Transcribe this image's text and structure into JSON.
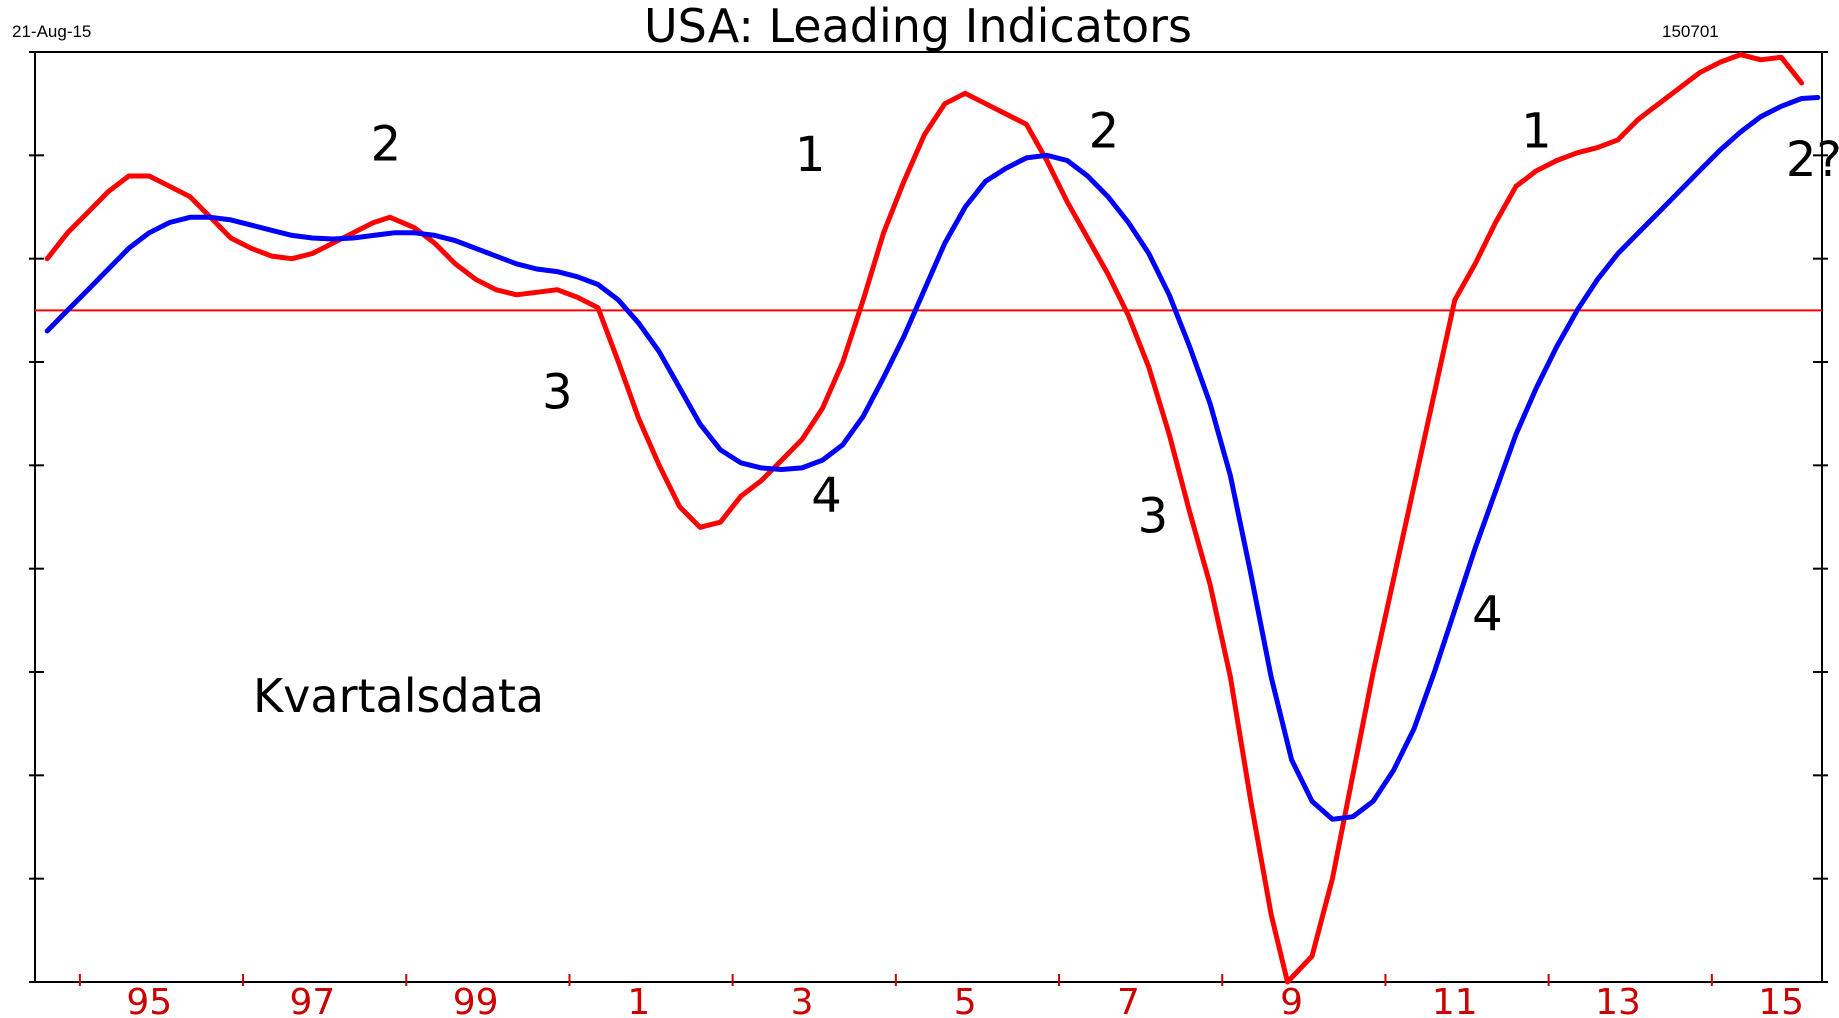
{
  "header": {
    "title": "USA: Leading Indicators",
    "date": "21-Aug-15",
    "code": "150701"
  },
  "note": "Kvartalsdata",
  "chart_data": {
    "type": "line",
    "title": "USA: Leading Indicators",
    "xlabel": "",
    "ylabel": "",
    "xlim": [
      1993.6,
      2015.5
    ],
    "ylim": [
      -9.0,
      9.0
    ],
    "grid": false,
    "legend": "none",
    "x_tick_labels": [
      {
        "x": 1995,
        "label": "95"
      },
      {
        "x": 1997,
        "label": "97"
      },
      {
        "x": 1999,
        "label": "99"
      },
      {
        "x": 2001,
        "label": "1"
      },
      {
        "x": 2003,
        "label": "3"
      },
      {
        "x": 2005,
        "label": "5"
      },
      {
        "x": 2007,
        "label": "7"
      },
      {
        "x": 2009,
        "label": "9"
      },
      {
        "x": 2011,
        "label": "11"
      },
      {
        "x": 2013,
        "label": "13"
      },
      {
        "x": 2015,
        "label": "15"
      }
    ],
    "y_ticks": [
      -9,
      -7,
      -5,
      -3,
      -1,
      1,
      3,
      5,
      7,
      9
    ],
    "reference_line": {
      "y": 4.0,
      "color": "#ff0000"
    },
    "series": [
      {
        "color": "#ff0000",
        "points": [
          [
            1993.75,
            5.0
          ],
          [
            1994.0,
            5.5
          ],
          [
            1994.25,
            5.9
          ],
          [
            1994.5,
            6.3
          ],
          [
            1994.75,
            6.6
          ],
          [
            1995.0,
            6.6
          ],
          [
            1995.25,
            6.4
          ],
          [
            1995.5,
            6.2
          ],
          [
            1995.75,
            5.8
          ],
          [
            1996.0,
            5.4
          ],
          [
            1996.25,
            5.2
          ],
          [
            1996.5,
            5.05
          ],
          [
            1996.75,
            5.0
          ],
          [
            1997.0,
            5.1
          ],
          [
            1997.25,
            5.3
          ],
          [
            1997.5,
            5.5
          ],
          [
            1997.75,
            5.7
          ],
          [
            1997.95,
            5.8
          ],
          [
            1998.25,
            5.6
          ],
          [
            1998.5,
            5.3
          ],
          [
            1998.75,
            4.9
          ],
          [
            1999.0,
            4.6
          ],
          [
            1999.25,
            4.4
          ],
          [
            1999.5,
            4.3
          ],
          [
            1999.75,
            4.35
          ],
          [
            2000.0,
            4.4
          ],
          [
            2000.25,
            4.25
          ],
          [
            2000.5,
            4.05
          ],
          [
            2000.75,
            3.0
          ],
          [
            2001.0,
            1.9
          ],
          [
            2001.25,
            1.0
          ],
          [
            2001.5,
            0.2
          ],
          [
            2001.75,
            -0.2
          ],
          [
            2002.0,
            -0.1
          ],
          [
            2002.25,
            0.4
          ],
          [
            2002.5,
            0.7
          ],
          [
            2002.75,
            1.1
          ],
          [
            2003.0,
            1.5
          ],
          [
            2003.25,
            2.1
          ],
          [
            2003.5,
            3.0
          ],
          [
            2003.75,
            4.2
          ],
          [
            2004.0,
            5.5
          ],
          [
            2004.25,
            6.5
          ],
          [
            2004.5,
            7.4
          ],
          [
            2004.75,
            8.0
          ],
          [
            2005.0,
            8.2
          ],
          [
            2005.25,
            8.0
          ],
          [
            2005.5,
            7.8
          ],
          [
            2005.75,
            7.6
          ],
          [
            2006.0,
            6.9
          ],
          [
            2006.25,
            6.1
          ],
          [
            2006.5,
            5.4
          ],
          [
            2006.75,
            4.7
          ],
          [
            2007.0,
            3.9
          ],
          [
            2007.25,
            2.9
          ],
          [
            2007.5,
            1.6
          ],
          [
            2007.75,
            0.1
          ],
          [
            2008.0,
            -1.3
          ],
          [
            2008.25,
            -3.1
          ],
          [
            2008.5,
            -5.5
          ],
          [
            2008.75,
            -7.7
          ],
          [
            2008.95,
            -9.0
          ],
          [
            2009.25,
            -8.5
          ],
          [
            2009.5,
            -7.0
          ],
          [
            2009.75,
            -5.0
          ],
          [
            2010.0,
            -3.0
          ],
          [
            2010.25,
            -1.2
          ],
          [
            2010.5,
            0.6
          ],
          [
            2010.75,
            2.4
          ],
          [
            2011.0,
            4.2
          ],
          [
            2011.25,
            4.9
          ],
          [
            2011.5,
            5.7
          ],
          [
            2011.75,
            6.4
          ],
          [
            2012.0,
            6.7
          ],
          [
            2012.25,
            6.9
          ],
          [
            2012.5,
            7.05
          ],
          [
            2012.75,
            7.15
          ],
          [
            2013.0,
            7.3
          ],
          [
            2013.25,
            7.7
          ],
          [
            2013.5,
            8.0
          ],
          [
            2013.75,
            8.3
          ],
          [
            2014.0,
            8.6
          ],
          [
            2014.25,
            8.8
          ],
          [
            2014.5,
            8.95
          ],
          [
            2014.75,
            8.85
          ],
          [
            2015.0,
            8.9
          ],
          [
            2015.25,
            8.4
          ]
        ]
      },
      {
        "color": "#0000ff",
        "points": [
          [
            1993.75,
            3.6
          ],
          [
            1994.0,
            4.0
          ],
          [
            1994.25,
            4.4
          ],
          [
            1994.5,
            4.8
          ],
          [
            1994.75,
            5.2
          ],
          [
            1995.0,
            5.5
          ],
          [
            1995.25,
            5.7
          ],
          [
            1995.5,
            5.8
          ],
          [
            1995.75,
            5.8
          ],
          [
            1996.0,
            5.75
          ],
          [
            1996.25,
            5.65
          ],
          [
            1996.5,
            5.55
          ],
          [
            1996.75,
            5.45
          ],
          [
            1997.0,
            5.4
          ],
          [
            1997.25,
            5.38
          ],
          [
            1997.5,
            5.4
          ],
          [
            1997.75,
            5.45
          ],
          [
            1998.0,
            5.5
          ],
          [
            1998.25,
            5.5
          ],
          [
            1998.5,
            5.45
          ],
          [
            1998.75,
            5.35
          ],
          [
            1999.0,
            5.2
          ],
          [
            1999.25,
            5.05
          ],
          [
            1999.5,
            4.9
          ],
          [
            1999.75,
            4.8
          ],
          [
            2000.0,
            4.75
          ],
          [
            2000.25,
            4.65
          ],
          [
            2000.5,
            4.5
          ],
          [
            2000.75,
            4.2
          ],
          [
            2001.0,
            3.75
          ],
          [
            2001.25,
            3.2
          ],
          [
            2001.5,
            2.5
          ],
          [
            2001.75,
            1.8
          ],
          [
            2002.0,
            1.3
          ],
          [
            2002.25,
            1.05
          ],
          [
            2002.5,
            0.95
          ],
          [
            2002.75,
            0.92
          ],
          [
            2003.0,
            0.95
          ],
          [
            2003.25,
            1.1
          ],
          [
            2003.5,
            1.4
          ],
          [
            2003.75,
            1.95
          ],
          [
            2004.0,
            2.7
          ],
          [
            2004.25,
            3.5
          ],
          [
            2004.5,
            4.4
          ],
          [
            2004.75,
            5.3
          ],
          [
            2005.0,
            6.0
          ],
          [
            2005.25,
            6.5
          ],
          [
            2005.5,
            6.75
          ],
          [
            2005.75,
            6.95
          ],
          [
            2006.0,
            7.0
          ],
          [
            2006.25,
            6.9
          ],
          [
            2006.5,
            6.6
          ],
          [
            2006.75,
            6.2
          ],
          [
            2007.0,
            5.7
          ],
          [
            2007.25,
            5.1
          ],
          [
            2007.5,
            4.3
          ],
          [
            2007.75,
            3.3
          ],
          [
            2008.0,
            2.2
          ],
          [
            2008.25,
            0.8
          ],
          [
            2008.5,
            -1.1
          ],
          [
            2008.75,
            -3.1
          ],
          [
            2009.0,
            -4.7
          ],
          [
            2009.25,
            -5.5
          ],
          [
            2009.5,
            -5.85
          ],
          [
            2009.75,
            -5.8
          ],
          [
            2010.0,
            -5.5
          ],
          [
            2010.25,
            -4.9
          ],
          [
            2010.5,
            -4.1
          ],
          [
            2010.75,
            -3.0
          ],
          [
            2011.0,
            -1.8
          ],
          [
            2011.25,
            -0.6
          ],
          [
            2011.5,
            0.5
          ],
          [
            2011.75,
            1.6
          ],
          [
            2012.0,
            2.5
          ],
          [
            2012.25,
            3.3
          ],
          [
            2012.5,
            4.0
          ],
          [
            2012.75,
            4.6
          ],
          [
            2013.0,
            5.1
          ],
          [
            2013.25,
            5.5
          ],
          [
            2013.5,
            5.9
          ],
          [
            2013.75,
            6.3
          ],
          [
            2014.0,
            6.7
          ],
          [
            2014.25,
            7.1
          ],
          [
            2014.5,
            7.45
          ],
          [
            2014.75,
            7.75
          ],
          [
            2015.0,
            7.95
          ],
          [
            2015.25,
            8.1
          ],
          [
            2015.45,
            8.12
          ]
        ]
      }
    ],
    "annotations": [
      {
        "text": "2",
        "x": 1997.9,
        "y": 6.9
      },
      {
        "text": "1",
        "x": 2003.1,
        "y": 6.7
      },
      {
        "text": "2",
        "x": 2006.7,
        "y": 7.15
      },
      {
        "text": "1",
        "x": 2012.0,
        "y": 7.15
      },
      {
        "text": "2?",
        "x": 2015.4,
        "y": 6.6
      },
      {
        "text": "3",
        "x": 2000.0,
        "y": 2.1
      },
      {
        "text": "4",
        "x": 2003.3,
        "y": 0.1
      },
      {
        "text": "3",
        "x": 2007.3,
        "y": -0.3
      },
      {
        "text": "4",
        "x": 2011.4,
        "y": -2.2
      }
    ]
  }
}
